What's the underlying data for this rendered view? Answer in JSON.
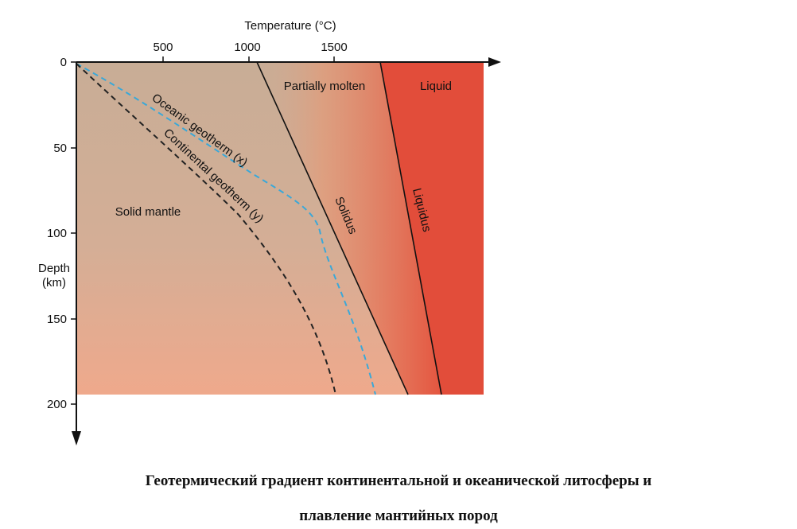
{
  "figure": {
    "x_axis": {
      "label": "Temperature (°C)",
      "ticks": [
        500,
        1000,
        1500
      ],
      "range": [
        0,
        2300
      ]
    },
    "y_axis": {
      "label_line1": "Depth",
      "label_line2": "(km)",
      "ticks": [
        0,
        50,
        100,
        150,
        200
      ],
      "range": [
        0,
        200
      ],
      "direction": "downward"
    },
    "regions": {
      "solid_mantle": "Solid mantle",
      "partially_molten": "Partially molten",
      "liquid": "Liquid"
    },
    "curves": {
      "oceanic": "Oceanic geotherm (x)",
      "continental": "Continental geotherm (y)",
      "solidus": "Solidus",
      "liquidus": "Liquidus"
    },
    "colors": {
      "solid": "#c8ad96",
      "solid_bottom": "#ecaa8e",
      "partial": "#e88060",
      "liquid": "#e24d3a",
      "oceanic_line": "#3aa8d8",
      "continental_line": "#222222",
      "solidus_line": "#111111"
    }
  },
  "chart_data": {
    "type": "line",
    "xlabel": "Temperature (°C)",
    "ylabel": "Depth (km)",
    "xlim": [
      0,
      2300
    ],
    "ylim": [
      0,
      200
    ],
    "y_inverted": true,
    "series": [
      {
        "name": "Oceanic geotherm (x)",
        "style": "dashed",
        "color": "#3aa8d8",
        "points": [
          [
            0,
            0
          ],
          [
            300,
            10
          ],
          [
            620,
            30
          ],
          [
            900,
            50
          ],
          [
            1200,
            70
          ],
          [
            1290,
            80
          ],
          [
            1380,
            100
          ],
          [
            1460,
            130
          ],
          [
            1520,
            160
          ],
          [
            1560,
            195
          ]
        ]
      },
      {
        "name": "Continental geotherm (y)",
        "style": "dashed",
        "color": "#222222",
        "points": [
          [
            0,
            0
          ],
          [
            180,
            20
          ],
          [
            470,
            50
          ],
          [
            750,
            80
          ],
          [
            960,
            110
          ],
          [
            1130,
            140
          ],
          [
            1270,
            170
          ],
          [
            1380,
            195
          ]
        ]
      },
      {
        "name": "Solidus",
        "style": "solid",
        "color": "#111111",
        "points": [
          [
            1050,
            0
          ],
          [
            1390,
            80
          ],
          [
            1750,
            195
          ]
        ]
      },
      {
        "name": "Liquidus",
        "style": "solid",
        "color": "#111111",
        "points": [
          [
            1750,
            0
          ],
          [
            1900,
            90
          ],
          [
            2100,
            195
          ]
        ]
      }
    ],
    "annotations": [
      "Solid mantle",
      "Partially molten",
      "Liquid"
    ]
  },
  "caption": {
    "line1": "Геотермический градиент континентальной и океанической литосферы и",
    "line2": "плавление мантийных пород"
  }
}
